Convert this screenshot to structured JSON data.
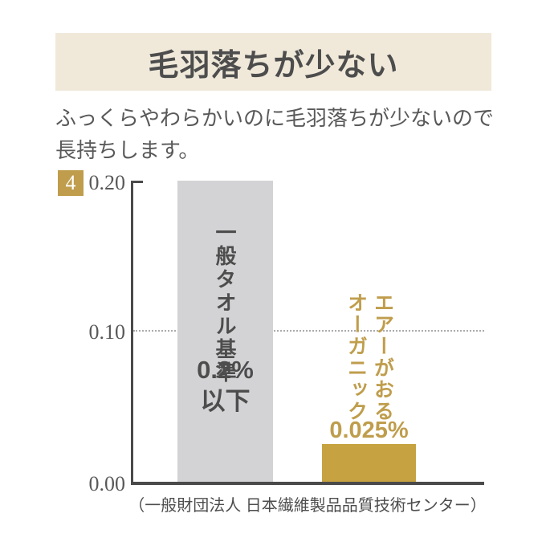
{
  "header": {
    "title": "毛羽落ちが少ない",
    "subtitle": "ふっくらやわらかいのに毛羽落ちが少ないので\n長持ちします。",
    "badge_number": "4"
  },
  "chart_data": {
    "type": "bar",
    "title": "毛羽落ちが少ない",
    "categories": [
      "一般タオル基準",
      "エアーがおる\nオーガニック"
    ],
    "values": [
      0.2,
      0.025
    ],
    "value_labels": [
      "0.2%\n以下",
      "0.025%"
    ],
    "ylim": [
      0,
      0.2
    ],
    "yticks": [
      "0.20",
      "0.10",
      "0.00"
    ],
    "gridline_value": 0.1,
    "grid": "dotted horizontal line at 0.10",
    "bar_colors": [
      "#d3d3d5",
      "#c6a340"
    ],
    "source": "（一般財団法人 日本繊維製品品質技術センター）"
  },
  "colors": {
    "banner_bg": "#f0e9da",
    "gold_accent": "#bf9d4c",
    "bar_gray": "#d3d3d5",
    "bar_gold": "#c6a340",
    "text_dark": "#4d4d4d",
    "axis": "#4a4a4a"
  }
}
